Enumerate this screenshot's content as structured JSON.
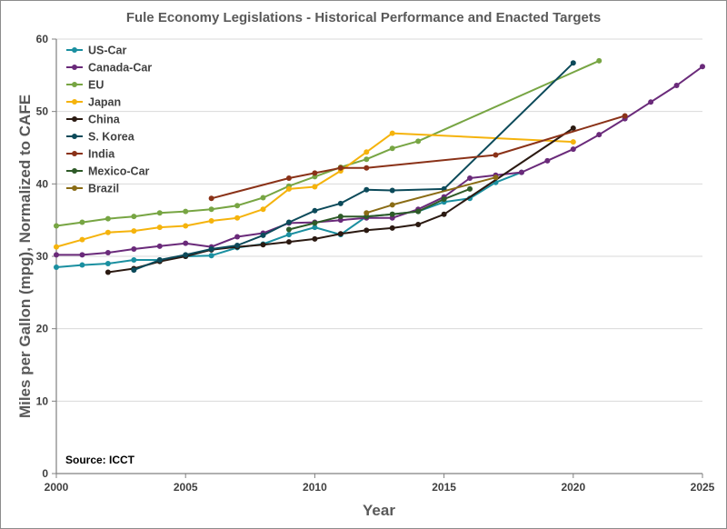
{
  "chart_data": {
    "type": "line",
    "title": "Fule Economy Legislations - Historical Performance and Enacted Targets",
    "xlabel": "Year",
    "ylabel": "Miles per Gallon (mpg), Normalized to CAFE",
    "xlim": [
      2000,
      2025
    ],
    "ylim": [
      0,
      60
    ],
    "xticks": [
      2000,
      2005,
      2010,
      2015,
      2020,
      2025
    ],
    "yticks": [
      0,
      10,
      20,
      30,
      40,
      50,
      60
    ],
    "grid": "horizontal",
    "legend_position": "top-left",
    "annotation": "Source: ICCT",
    "series": [
      {
        "name": "US-Car",
        "color": "#1a8fa0",
        "x": [
          2000,
          2001,
          2002,
          2003,
          2004,
          2005,
          2006,
          2007,
          2008,
          2009,
          2010,
          2011,
          2012,
          2013,
          2014,
          2015,
          2016,
          2017,
          2018
        ],
        "y": [
          28.5,
          28.8,
          29.0,
          29.5,
          29.5,
          30.0,
          30.1,
          31.2,
          31.7,
          33.0,
          34.0,
          33.0,
          35.5,
          35.8,
          36.2,
          37.5,
          38.0,
          40.2,
          41.6
        ]
      },
      {
        "name": "Canada-Car",
        "color": "#6a2a7a",
        "x": [
          2000,
          2001,
          2002,
          2003,
          2004,
          2005,
          2006,
          2007,
          2008,
          2009,
          2010,
          2011,
          2012,
          2013,
          2014,
          2015,
          2016,
          2017,
          2018,
          2019,
          2020,
          2021,
          2022,
          2023,
          2024,
          2025
        ],
        "y": [
          30.2,
          30.2,
          30.5,
          31.0,
          31.4,
          31.8,
          31.3,
          32.7,
          33.2,
          34.6,
          34.7,
          35.0,
          35.3,
          35.3,
          36.5,
          38.2,
          40.8,
          41.2,
          41.6,
          43.2,
          44.8,
          46.8,
          49.0,
          51.3,
          53.6,
          56.2
        ]
      },
      {
        "name": "EU",
        "color": "#77a543",
        "x": [
          2000,
          2001,
          2002,
          2003,
          2004,
          2005,
          2006,
          2007,
          2008,
          2009,
          2010,
          2011,
          2012,
          2013,
          2014,
          2021
        ],
        "y": [
          34.2,
          34.7,
          35.2,
          35.5,
          36.0,
          36.2,
          36.5,
          37.0,
          38.1,
          39.7,
          41.0,
          42.3,
          43.4,
          44.9,
          45.9,
          57.0
        ]
      },
      {
        "name": "Japan",
        "color": "#f5b30c",
        "x": [
          2000,
          2001,
          2002,
          2003,
          2004,
          2005,
          2006,
          2007,
          2008,
          2009,
          2010,
          2011,
          2012,
          2013,
          2020
        ],
        "y": [
          31.3,
          32.3,
          33.3,
          33.5,
          34.0,
          34.2,
          34.9,
          35.3,
          36.5,
          39.3,
          39.6,
          41.8,
          44.4,
          47.0,
          45.8
        ]
      },
      {
        "name": "China",
        "color": "#2b1a12",
        "x": [
          2002,
          2003,
          2004,
          2005,
          2006,
          2007,
          2008,
          2009,
          2010,
          2011,
          2012,
          2013,
          2014,
          2015,
          2020
        ],
        "y": [
          27.8,
          28.3,
          29.3,
          30.0,
          30.9,
          31.3,
          31.6,
          32.0,
          32.4,
          33.1,
          33.6,
          33.9,
          34.4,
          35.8,
          47.7
        ]
      },
      {
        "name": "S. Korea",
        "color": "#0c4a5a",
        "x": [
          2003,
          2004,
          2005,
          2006,
          2007,
          2008,
          2009,
          2010,
          2011,
          2012,
          2013,
          2015,
          2020
        ],
        "y": [
          28.1,
          29.5,
          30.2,
          31.0,
          31.5,
          32.9,
          34.7,
          36.3,
          37.3,
          39.2,
          39.1,
          39.3,
          56.7
        ]
      },
      {
        "name": "India",
        "color": "#8a3218",
        "x": [
          2006,
          2009,
          2010,
          2011,
          2012,
          2017,
          2022
        ],
        "y": [
          38.0,
          40.8,
          41.5,
          42.2,
          42.2,
          44.0,
          49.4
        ]
      },
      {
        "name": "Mexico-Car",
        "color": "#2e5a28",
        "x": [
          2009,
          2010,
          2011,
          2012,
          2013,
          2014,
          2015,
          2016
        ],
        "y": [
          33.7,
          34.6,
          35.5,
          35.5,
          35.8,
          36.2,
          37.9,
          39.3
        ]
      },
      {
        "name": "Brazil",
        "color": "#8a6c15",
        "x": [
          2012,
          2013,
          2017
        ],
        "y": [
          36.0,
          37.1,
          40.9
        ]
      }
    ]
  }
}
